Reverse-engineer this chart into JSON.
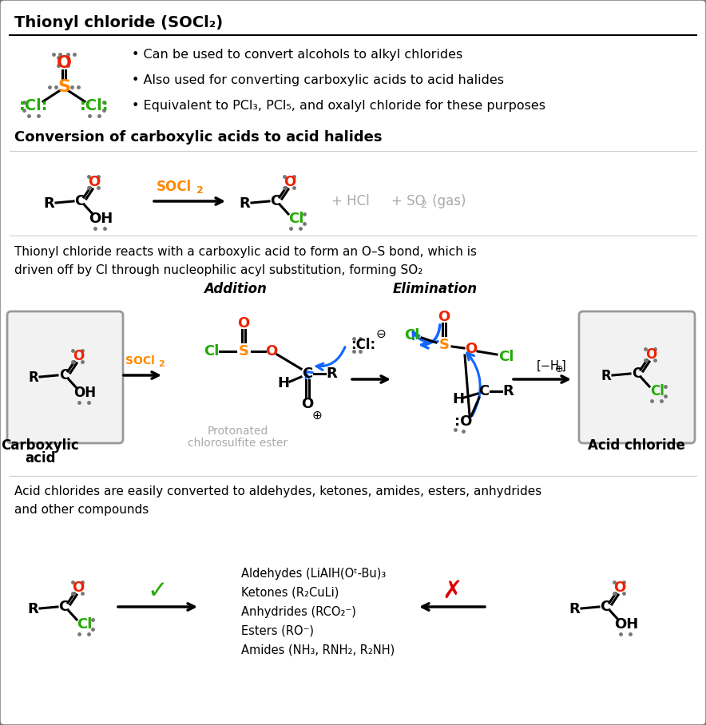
{
  "bg_color": "#ffffff",
  "border_color": "#888888",
  "title1": "Thionyl chloride (SOCl₂)",
  "bullet1": "• Can be used to convert alcohols to alkyl chlorides",
  "bullet2": "• Also used for converting carboxylic acids to acid halides",
  "bullet3": "• Equivalent to PCl₃, PCl₅, and oxalyl chloride for these purposes",
  "section2": "Conversion of carboxylic acids to acid halides",
  "desc_text": "Thionyl chloride reacts with a carboxylic acid to form an O–S bond, which is\ndriven off by Cl through nucleophilic acyl substitution, forming SO₂",
  "addition_label": "Addition",
  "elimination_label": "Elimination",
  "carboxylic_acid_label1": "Carboxylic",
  "carboxylic_acid_label2": "acid",
  "protonated_label1": "Protonated",
  "protonated_label2": "chlorosulfite ester",
  "acid_chloride_label": "Acid chloride",
  "bottom_text": "Acid chlorides are easily converted to aldehydes, ketones, amides, esters, anhydrides\nand other compounds",
  "color_O": "#ee2200",
  "color_S": "#ff8800",
  "color_Cl": "#22aa00",
  "color_black": "#000000",
  "color_gray": "#aaaaaa",
  "color_blue": "#1166ff",
  "color_orange": "#ff8800",
  "color_green": "#22aa00",
  "color_red": "#dd0000"
}
